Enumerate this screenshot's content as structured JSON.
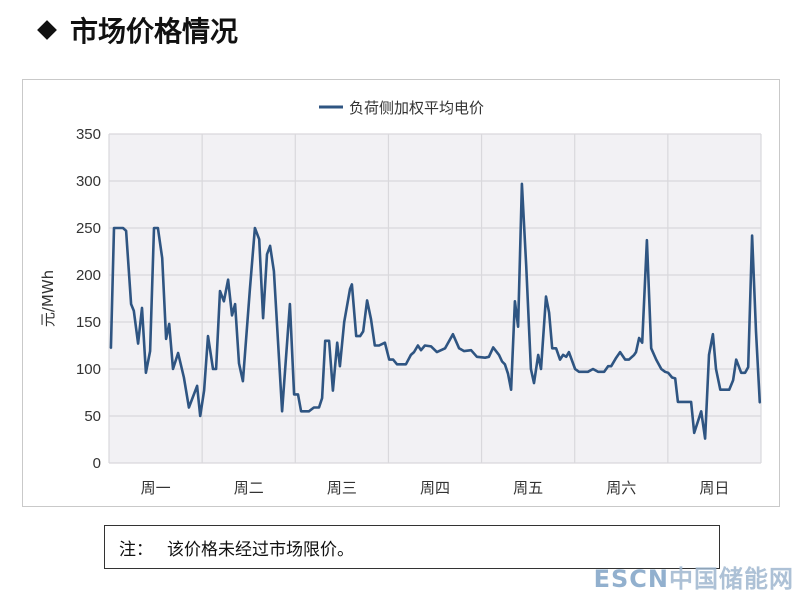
{
  "header": {
    "title": "市场价格情况",
    "bullet_icon": "diamond-icon"
  },
  "note": {
    "label": "注：",
    "text": "该价格未经过市场限价。"
  },
  "watermark": {
    "latin": "ESCN",
    "cjk": "中国储能网"
  },
  "chart_data": {
    "type": "line",
    "title": "",
    "xlabel": "",
    "ylabel": "元/MWh",
    "ylim": [
      0,
      350
    ],
    "yticks": [
      0,
      50,
      100,
      150,
      200,
      250,
      300,
      350
    ],
    "xlim": [
      0,
      168
    ],
    "categories": [
      "周一",
      "周二",
      "周三",
      "周四",
      "周五",
      "周六",
      "周日"
    ],
    "grid": true,
    "legend": "top",
    "plot_background": "#f2f1f4",
    "series": [
      {
        "name": "负荷侧加权平均电价",
        "color": "#2f5582",
        "points": [
          [
            0.5,
            122
          ],
          [
            1.3,
            250
          ],
          [
            3.6,
            250
          ],
          [
            4.4,
            247
          ],
          [
            5.7,
            169
          ],
          [
            6.4,
            162
          ],
          [
            7.5,
            127
          ],
          [
            8.5,
            165
          ],
          [
            9.5,
            96
          ],
          [
            10.6,
            119
          ],
          [
            11.6,
            250
          ],
          [
            12.6,
            250
          ],
          [
            13.7,
            218
          ],
          [
            14.7,
            132
          ],
          [
            15.5,
            148
          ],
          [
            16.5,
            100
          ],
          [
            17.8,
            117
          ],
          [
            19.3,
            91
          ],
          [
            20.6,
            59
          ],
          [
            22.7,
            82
          ],
          [
            23.5,
            50
          ],
          [
            24.5,
            77
          ],
          [
            25.5,
            135
          ],
          [
            26.8,
            100
          ],
          [
            27.6,
            100
          ],
          [
            28.6,
            183
          ],
          [
            29.6,
            172
          ],
          [
            30.7,
            195
          ],
          [
            31.7,
            157
          ],
          [
            32.5,
            169
          ],
          [
            33.5,
            106
          ],
          [
            34.5,
            87
          ],
          [
            36.3,
            185
          ],
          [
            37.6,
            250
          ],
          [
            38.7,
            238
          ],
          [
            39.7,
            154
          ],
          [
            40.7,
            222
          ],
          [
            41.5,
            231
          ],
          [
            42.5,
            204
          ],
          [
            44.6,
            55
          ],
          [
            46.6,
            169
          ],
          [
            47.7,
            73
          ],
          [
            48.7,
            73
          ],
          [
            49.5,
            55
          ],
          [
            51.5,
            55
          ],
          [
            52.8,
            59
          ],
          [
            54.1,
            59
          ],
          [
            54.9,
            69
          ],
          [
            55.7,
            130
          ],
          [
            56.7,
            130
          ],
          [
            57.7,
            77
          ],
          [
            58.8,
            128
          ],
          [
            59.5,
            103
          ],
          [
            60.6,
            150
          ],
          [
            62.1,
            185
          ],
          [
            62.6,
            190
          ],
          [
            63.7,
            135
          ],
          [
            64.7,
            135
          ],
          [
            65.5,
            140
          ],
          [
            66.5,
            173
          ],
          [
            67.5,
            153
          ],
          [
            68.5,
            125
          ],
          [
            69.6,
            125
          ],
          [
            71.1,
            128
          ],
          [
            72.2,
            110
          ],
          [
            73.2,
            110
          ],
          [
            74.2,
            105
          ],
          [
            76.5,
            105
          ],
          [
            77.8,
            115
          ],
          [
            78.6,
            118
          ],
          [
            79.6,
            125
          ],
          [
            80.4,
            120
          ],
          [
            81.4,
            125
          ],
          [
            83.0,
            124
          ],
          [
            84.5,
            118
          ],
          [
            86.6,
            122
          ],
          [
            88.6,
            137
          ],
          [
            90.2,
            122
          ],
          [
            91.5,
            119
          ],
          [
            93.3,
            120
          ],
          [
            94.8,
            113
          ],
          [
            96.9,
            112
          ],
          [
            97.9,
            113
          ],
          [
            99.0,
            123
          ],
          [
            100.5,
            115
          ],
          [
            101.3,
            108
          ],
          [
            102.0,
            105
          ],
          [
            102.8,
            95
          ],
          [
            103.6,
            78
          ],
          [
            104.6,
            172
          ],
          [
            105.4,
            145
          ],
          [
            106.4,
            297
          ],
          [
            107.5,
            210
          ],
          [
            108.7,
            100
          ],
          [
            109.5,
            85
          ],
          [
            110.6,
            115
          ],
          [
            111.3,
            100
          ],
          [
            112.6,
            177
          ],
          [
            113.4,
            160
          ],
          [
            114.2,
            122
          ],
          [
            115.2,
            122
          ],
          [
            116.2,
            110
          ],
          [
            117.0,
            115
          ],
          [
            117.8,
            113
          ],
          [
            118.5,
            118
          ],
          [
            120.1,
            100
          ],
          [
            121.1,
            97
          ],
          [
            123.4,
            97
          ],
          [
            124.7,
            100
          ],
          [
            126.0,
            97
          ],
          [
            127.6,
            97
          ],
          [
            128.6,
            103
          ],
          [
            129.4,
            103
          ],
          [
            130.7,
            112
          ],
          [
            131.7,
            118
          ],
          [
            133.0,
            110
          ],
          [
            134.0,
            110
          ],
          [
            135.3,
            115
          ],
          [
            135.8,
            118
          ],
          [
            136.6,
            133
          ],
          [
            137.4,
            128
          ],
          [
            138.6,
            237
          ],
          [
            139.7,
            122
          ],
          [
            141.0,
            110
          ],
          [
            142.3,
            100
          ],
          [
            143.3,
            97
          ],
          [
            144.1,
            96
          ],
          [
            145.1,
            91
          ],
          [
            145.9,
            90
          ],
          [
            146.6,
            65
          ],
          [
            149.0,
            65
          ],
          [
            150.0,
            65
          ],
          [
            150.8,
            32
          ],
          [
            152.6,
            55
          ],
          [
            153.6,
            26
          ],
          [
            154.6,
            115
          ],
          [
            155.6,
            137
          ],
          [
            156.4,
            100
          ],
          [
            157.5,
            78
          ],
          [
            159.8,
            78
          ],
          [
            160.8,
            88
          ],
          [
            161.6,
            110
          ],
          [
            162.9,
            96
          ],
          [
            163.9,
            96
          ],
          [
            164.7,
            102
          ],
          [
            165.7,
            242
          ],
          [
            166.7,
            140
          ],
          [
            167.7,
            64
          ]
        ]
      }
    ]
  }
}
